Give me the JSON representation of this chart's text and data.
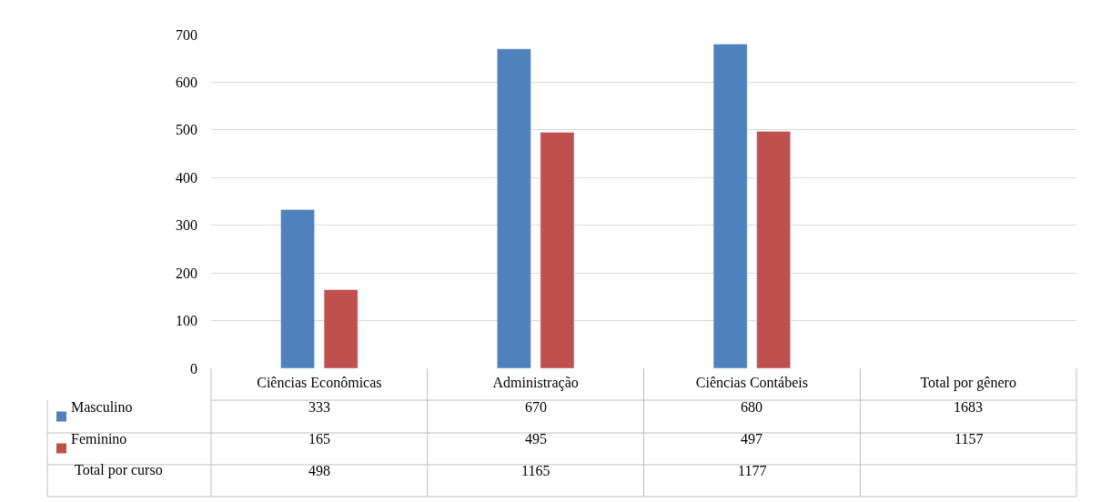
{
  "chart_data": {
    "type": "bar",
    "categories": [
      "Ciências Econômicas",
      "Administração",
      "Ciências Contábeis",
      "Total por gênero"
    ],
    "series": [
      {
        "name": "Masculino",
        "color": "#4f81bd",
        "values": [
          333,
          670,
          680,
          null
        ],
        "value_labels": [
          "333",
          "670",
          "680",
          "1683"
        ]
      },
      {
        "name": "Feminino",
        "color": "#c0504d",
        "values": [
          165,
          495,
          497,
          null
        ],
        "value_labels": [
          "165",
          "495",
          "497",
          "1157"
        ]
      }
    ],
    "annotations": [
      "Total por curso",
      "498",
      "1165",
      "1177"
    ],
    "legend": "bottom left",
    "ylim": [
      0,
      700
    ],
    "yticks": [
      0,
      100,
      200,
      300,
      400,
      500,
      600,
      700
    ],
    "grid": "y"
  }
}
